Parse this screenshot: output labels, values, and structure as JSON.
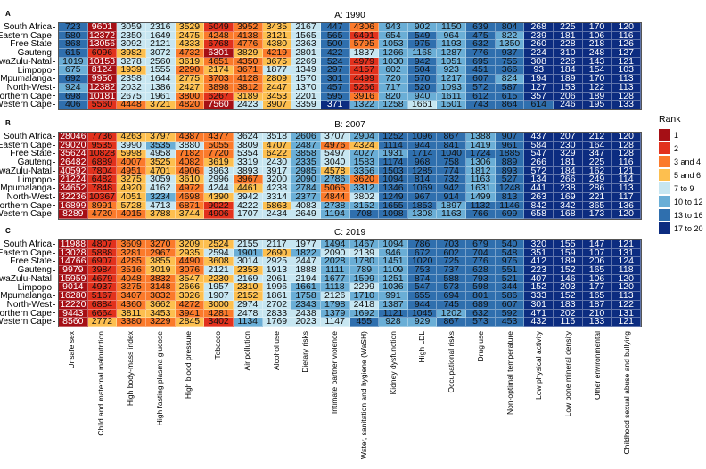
{
  "chart_data": {
    "type": "heatmap",
    "regions": [
      "South Africa",
      "Eastern Cape",
      "Free State",
      "Gauteng",
      "KwaZulu-Natal",
      "Limpopo",
      "Mpumalanga",
      "North-West",
      "Northern Cape",
      "Western Cape"
    ],
    "risk_factors": [
      "Unsafe sex",
      "Child and maternal malnutrition",
      "High body-mass index",
      "High fasting plasma glucose",
      "High blood pressure",
      "Tobacco",
      "Air pollution",
      "Alcohol use",
      "Dietary risks",
      "Intimate partner violence",
      "Water, sanitation and hygiene (WaSH)",
      "Kidney dysfunction",
      "High LDL",
      "Occupational risks",
      "Drug use",
      "Non-optimal temperature",
      "Low physical activity",
      "Low bone mineral density",
      "Other environmental",
      "Childhood sexual abuse and bullying"
    ],
    "legend": {
      "title": "Rank",
      "items": [
        {
          "label": "1",
          "color": "#a50f15"
        },
        {
          "label": "2",
          "color": "#e2311d"
        },
        {
          "label": "3 and 4",
          "color": "#fb7a2b"
        },
        {
          "label": "5 and 6",
          "color": "#fdbf4f"
        },
        {
          "label": "7 to 9",
          "color": "#c7e6f1"
        },
        {
          "label": "10 to 12",
          "color": "#6aaed6"
        },
        {
          "label": "13 to 16",
          "color": "#2f6fae"
        },
        {
          "label": "17 to 20",
          "color": "#0c2c80"
        }
      ]
    },
    "panels": [
      {
        "letter": "A",
        "title": "A: 1990",
        "values": [
          [
            723,
            9601,
            3059,
            2316,
            3529,
            5049,
            3952,
            3435,
            2167,
            447,
            4306,
            943,
            902,
            1150,
            639,
            804,
            268,
            225,
            170,
            120
          ],
          [
            580,
            12372,
            2350,
            1649,
            2475,
            4248,
            4138,
            3121,
            1565,
            565,
            6491,
            654,
            549,
            964,
            475,
            822,
            239,
            181,
            106,
            116
          ],
          [
            868,
            13056,
            3092,
            2121,
            4333,
            6768,
            4776,
            4380,
            2363,
            500,
            5795,
            1053,
            975,
            1193,
            632,
            1350,
            260,
            228,
            218,
            126
          ],
          [
            615,
            6096,
            3982,
            3072,
            4732,
            6301,
            3829,
            4219,
            2801,
            422,
            1837,
            1266,
            1168,
            1287,
            776,
            937,
            224,
            310,
            248,
            127
          ],
          [
            1019,
            10153,
            3278,
            2560,
            3619,
            4651,
            4350,
            3675,
            2269,
            524,
            4979,
            1030,
            942,
            1051,
            695,
            755,
            308,
            226,
            143,
            121
          ],
          [
            675,
            8124,
            1939,
            1555,
            2290,
            2174,
            3671,
            1877,
            1349,
            297,
            4157,
            602,
            504,
            923,
            451,
            366,
            93,
            184,
            154,
            103
          ],
          [
            692,
            9950,
            2358,
            1644,
            2775,
            3703,
            4128,
            2809,
            1570,
            301,
            4499,
            720,
            570,
            1217,
            607,
            824,
            194,
            189,
            170,
            113
          ],
          [
            924,
            12382,
            2032,
            1386,
            2427,
            3898,
            3812,
            2447,
            1370,
            457,
            5266,
            717,
            520,
            1093,
            572,
            587,
            127,
            153,
            122,
            113
          ],
          [
            698,
            10181,
            2675,
            1961,
            3800,
            6267,
            3189,
            3453,
            2201,
            595,
            3916,
            820,
            940,
            1611,
            612,
            615,
            357,
            206,
            189,
            128
          ],
          [
            406,
            5560,
            4448,
            3721,
            4820,
            7560,
            2423,
            3907,
            3359,
            371,
            1322,
            1258,
            1661,
            1501,
            743,
            864,
            614,
            246,
            195,
            133
          ]
        ]
      },
      {
        "letter": "B",
        "title": "B: 2007",
        "values": [
          [
            28046,
            7736,
            4263,
            3797,
            4387,
            4377,
            3624,
            3518,
            2606,
            3707,
            2904,
            1252,
            1096,
            867,
            1388,
            907,
            437,
            207,
            212,
            120
          ],
          [
            29020,
            9535,
            3990,
            3535,
            3880,
            5055,
            3809,
            4707,
            2487,
            4976,
            4324,
            1114,
            944,
            841,
            1419,
            961,
            584,
            230,
            164,
            128
          ],
          [
            35624,
            10828,
            5998,
            4958,
            7182,
            7720,
            5354,
            6422,
            3858,
            5497,
            4027,
            1931,
            1714,
            1040,
            1724,
            1885,
            547,
            329,
            347,
            128
          ],
          [
            26482,
            6889,
            4007,
            3525,
            4082,
            3619,
            3319,
            2430,
            2335,
            3040,
            1583,
            1174,
            968,
            758,
            1306,
            889,
            266,
            181,
            225,
            116
          ],
          [
            40592,
            7804,
            4951,
            4701,
            4906,
            3963,
            3893,
            3917,
            2985,
            4578,
            3356,
            1503,
            1285,
            774,
            1812,
            893,
            572,
            184,
            162,
            121
          ],
          [
            21224,
            6482,
            3275,
            3059,
            3610,
            2996,
            3967,
            3200,
            2090,
            2786,
            3620,
            1094,
            814,
            732,
            1163,
            527,
            134,
            266,
            249,
            114
          ],
          [
            34652,
            7848,
            4920,
            4162,
            4972,
            4244,
            4461,
            4238,
            2784,
            5065,
            3312,
            1346,
            1069,
            942,
            1631,
            1248,
            441,
            238,
            286,
            113
          ],
          [
            32236,
            10367,
            4051,
            3234,
            4698,
            4390,
            3942,
            3314,
            2377,
            4844,
            3802,
            1249,
            967,
            914,
            1499,
            813,
            263,
            169,
            221,
            117
          ],
          [
            16899,
            8991,
            5728,
            4713,
            6871,
            9022,
            4222,
            5863,
            4083,
            2738,
            3152,
            1655,
            1853,
            1897,
            1132,
            1146,
            842,
            342,
            365,
            136
          ],
          [
            8289,
            4720,
            4015,
            3788,
            3744,
            4906,
            1707,
            2434,
            2649,
            1194,
            708,
            1098,
            1308,
            1163,
            766,
            699,
            658,
            168,
            173,
            120
          ]
        ]
      },
      {
        "letter": "C",
        "title": "C: 2019",
        "values": [
          [
            11988,
            4807,
            3609,
            3270,
            3209,
            2524,
            2155,
            2117,
            1977,
            1494,
            1467,
            1094,
            786,
            703,
            679,
            540,
            320,
            155,
            147,
            121
          ],
          [
            13028,
            5888,
            3281,
            2967,
            2935,
            2594,
            1901,
            2690,
            1822,
            2090,
            2139,
            946,
            672,
            602,
            704,
            548,
            351,
            159,
            107,
            131
          ],
          [
            14766,
            6907,
            4285,
            3855,
            4490,
            3608,
            3014,
            2925,
            2447,
            2028,
            1780,
            1451,
            1020,
            725,
            776,
            975,
            412,
            189,
            206,
            124
          ],
          [
            9979,
            3984,
            3516,
            3019,
            3076,
            2121,
            2353,
            1913,
            1888,
            1111,
            789,
            1109,
            753,
            737,
            628,
            551,
            223,
            152,
            165,
            118
          ],
          [
            15959,
            4679,
            4048,
            3832,
            3547,
            2230,
            2169,
            2061,
            2194,
            1677,
            1599,
            1251,
            874,
            588,
            793,
            521,
            407,
            146,
            106,
            120
          ],
          [
            9014,
            4937,
            3275,
            3148,
            2666,
            1957,
            2310,
            1996,
            1661,
            1118,
            2299,
            1036,
            547,
            573,
            598,
            344,
            152,
            203,
            177,
            120
          ],
          [
            16280,
            5167,
            3407,
            3032,
            3026,
            1907,
            2152,
            1861,
            1758,
            2126,
            1710,
            991,
            655,
            694,
            801,
            586,
            333,
            152,
            165,
            113
          ],
          [
            12220,
            6884,
            4360,
            3662,
            4272,
            3000,
            2974,
            2702,
            2343,
            1798,
            2418,
            1387,
            944,
            745,
            689,
            607,
            301,
            183,
            187,
            122
          ],
          [
            9443,
            6664,
            3811,
            3453,
            3941,
            4281,
            2478,
            2833,
            2438,
            1379,
            1692,
            1121,
            1045,
            1202,
            632,
            592,
            471,
            202,
            210,
            131
          ],
          [
            8560,
            2772,
            3380,
            3229,
            2845,
            3402,
            1134,
            1769,
            2023,
            1147,
            455,
            928,
            929,
            867,
            573,
            453,
            432,
            116,
            133,
            121
          ]
        ]
      }
    ]
  }
}
